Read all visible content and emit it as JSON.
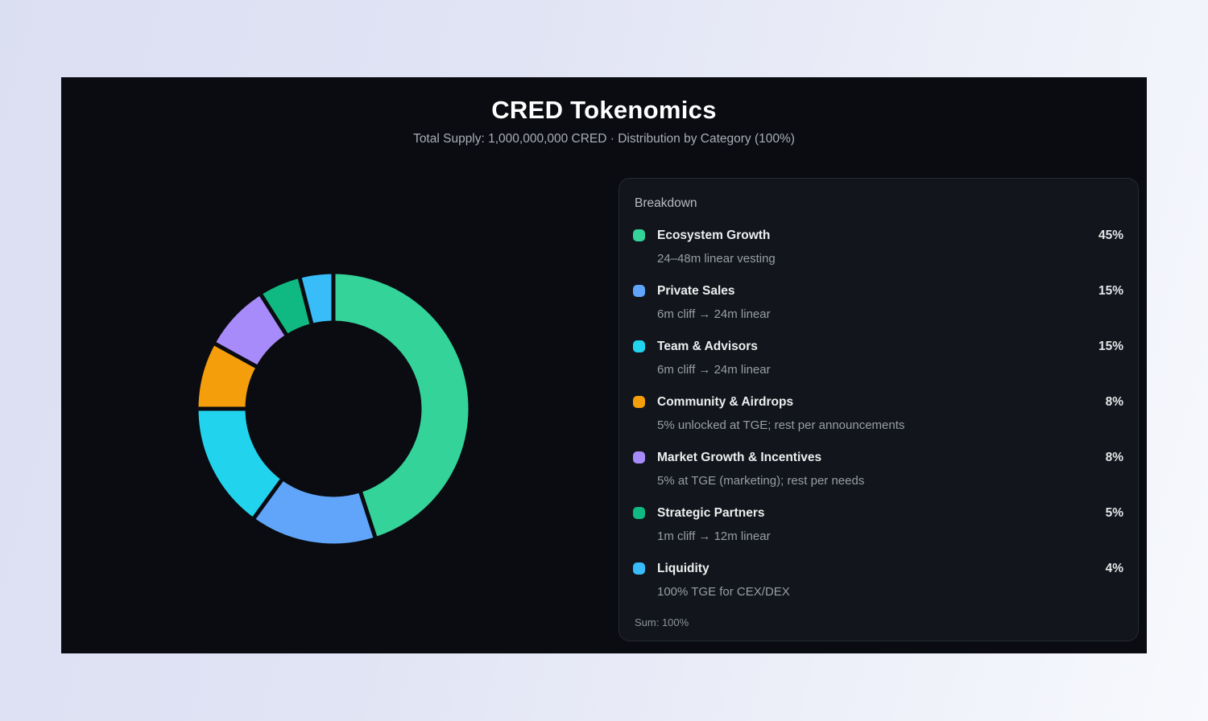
{
  "header": {
    "title": "CRED Tokenomics",
    "subtitle": "Total Supply: 1,000,000,000 CRED · Distribution by Category (100%)"
  },
  "breakdown": {
    "heading": "Breakdown",
    "sum_label": "Sum: 100%",
    "items": [
      {
        "label": "Ecosystem Growth",
        "percent": "45%",
        "note": "24–48m linear vesting",
        "color": "#34d399"
      },
      {
        "label": "Private Sales",
        "percent": "15%",
        "note": "6m cliff → 24m linear",
        "color": "#60a5fa"
      },
      {
        "label": "Team & Advisors",
        "percent": "15%",
        "note": "6m cliff → 24m linear",
        "color": "#22d3ee"
      },
      {
        "label": "Community & Airdrops",
        "percent": "8%",
        "note": "5% unlocked at TGE; rest per announcements",
        "color": "#f59e0b"
      },
      {
        "label": "Market Growth & Incentives",
        "percent": "8%",
        "note": "5% at TGE (marketing); rest per needs",
        "color": "#a78bfa"
      },
      {
        "label": "Strategic Partners",
        "percent": "5%",
        "note": "1m cliff → 12m linear",
        "color": "#10b981"
      },
      {
        "label": "Liquidity",
        "percent": "4%",
        "note": "100% TGE for CEX/DEX",
        "color": "#38bdf8"
      }
    ]
  },
  "chart_data": {
    "type": "pie",
    "donut": true,
    "title": "CRED Tokenomics",
    "subtitle": "Total Supply: 1,000,000,000 CRED · Distribution by Category (100%)",
    "categories": [
      "Ecosystem Growth",
      "Private Sales",
      "Team & Advisors",
      "Community & Airdrops",
      "Market Growth & Incentives",
      "Strategic Partners",
      "Liquidity"
    ],
    "values": [
      45,
      15,
      15,
      8,
      8,
      5,
      4
    ],
    "colors": [
      "#34d399",
      "#60a5fa",
      "#22d3ee",
      "#f59e0b",
      "#a78bfa",
      "#10b981",
      "#38bdf8"
    ],
    "start_angle_deg": -90,
    "direction": "clockwise",
    "inner_radius_ratio": 0.63,
    "segment_gap_color": "#0a0c11",
    "legend_position": "right",
    "background": "#0a0c11"
  }
}
